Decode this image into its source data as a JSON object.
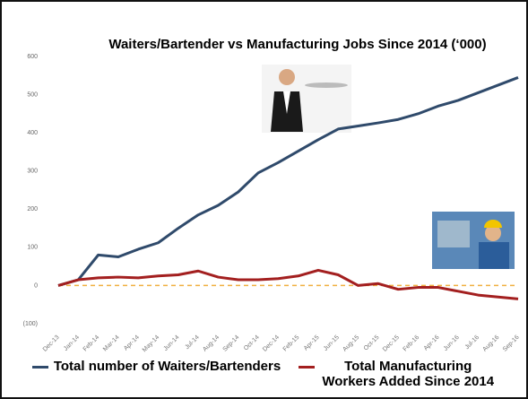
{
  "chart_data": {
    "type": "line",
    "title": "Waiters/Bartender vs Manufacturing Jobs Since 2014 (‘000)",
    "categories": [
      "Dec-13",
      "Jan-14",
      "Feb-14",
      "Mar-14",
      "Apr-14",
      "May-14",
      "Jun-14",
      "Jul-14",
      "Aug-14",
      "Sep-14",
      "Oct-14",
      "Dec-14",
      "Feb-15",
      "Apr-15",
      "Jun-15",
      "Aug-15",
      "Oct-15",
      "Dec-15",
      "Feb-16",
      "Apr-16",
      "Jun-16",
      "Jul-16",
      "Aug-16",
      "Sep-16"
    ],
    "series": [
      {
        "name": "Total number of Waiters/Bartenders",
        "color": "#2f4a6b",
        "values": [
          0,
          15,
          80,
          75,
          95,
          112,
          150,
          185,
          210,
          245,
          295,
          322,
          352,
          382,
          410,
          418,
          426,
          435,
          450,
          470,
          485,
          505,
          525,
          545
        ]
      },
      {
        "name": "Total Manufacturing Workers Added Since 2014",
        "color": "#a31f1f",
        "values": [
          0,
          15,
          20,
          22,
          20,
          25,
          28,
          38,
          22,
          15,
          15,
          18,
          25,
          40,
          28,
          0,
          5,
          -10,
          -5,
          -5,
          -15,
          -25,
          -30,
          -35
        ]
      }
    ],
    "ylim": [
      -100,
      600
    ],
    "yticks": [
      {
        "value": -100,
        "label": "(100)"
      },
      0,
      100,
      200,
      300,
      400,
      500,
      600
    ],
    "zero_line_color": "#f0b040"
  }
}
